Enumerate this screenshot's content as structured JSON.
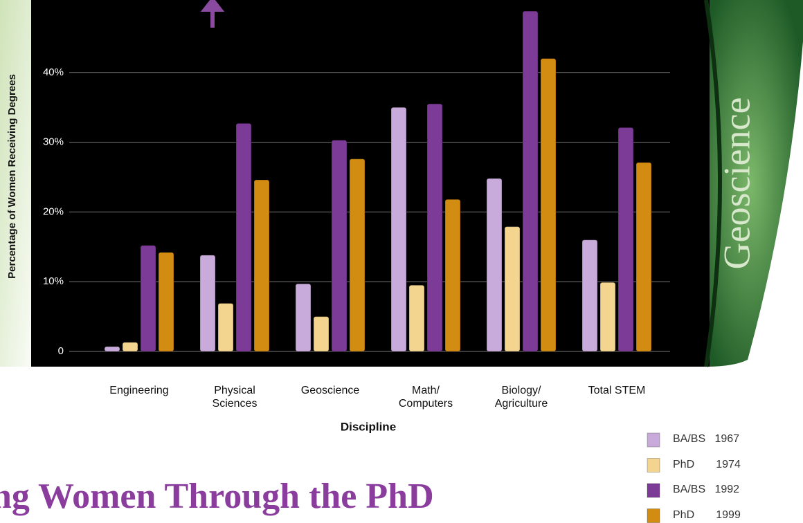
{
  "chart_data": {
    "type": "bar",
    "page_title": "ng Women Through the PhD",
    "side_label": "Geoscience",
    "y_label": "Percentage of Women Receiving Degrees",
    "x_label": "Discipline",
    "categories": [
      "Engineering",
      "Physical\nSciences",
      "Geoscience",
      "Math/\nComputers",
      "Biology/\nAgriculture",
      "Total STEM"
    ],
    "series": [
      {
        "name": "BA/BS   1967",
        "color": "#c9abdb",
        "values": [
          0.7,
          13.8,
          9.7,
          35.0,
          24.8,
          16.0
        ]
      },
      {
        "name": "PhD       1974",
        "color": "#f3d590",
        "values": [
          1.3,
          6.9,
          5.0,
          9.5,
          17.9,
          9.9
        ]
      },
      {
        "name": "BA/BS   1992",
        "color": "#7b3b96",
        "values": [
          15.2,
          32.7,
          30.3,
          35.5,
          48.8,
          32.1
        ]
      },
      {
        "name": "PhD       1999",
        "color": "#d38c12",
        "values": [
          14.2,
          24.6,
          27.6,
          21.8,
          42.0,
          27.1
        ]
      }
    ],
    "ylim": [
      0,
      50
    ],
    "yticks": [
      0,
      {
        "value": 10,
        "label": "10%"
      },
      {
        "value": 20,
        "label": "20%"
      },
      {
        "value": 30,
        "label": "30%"
      },
      {
        "value": 40,
        "label": "40%"
      }
    ],
    "grid": true
  }
}
